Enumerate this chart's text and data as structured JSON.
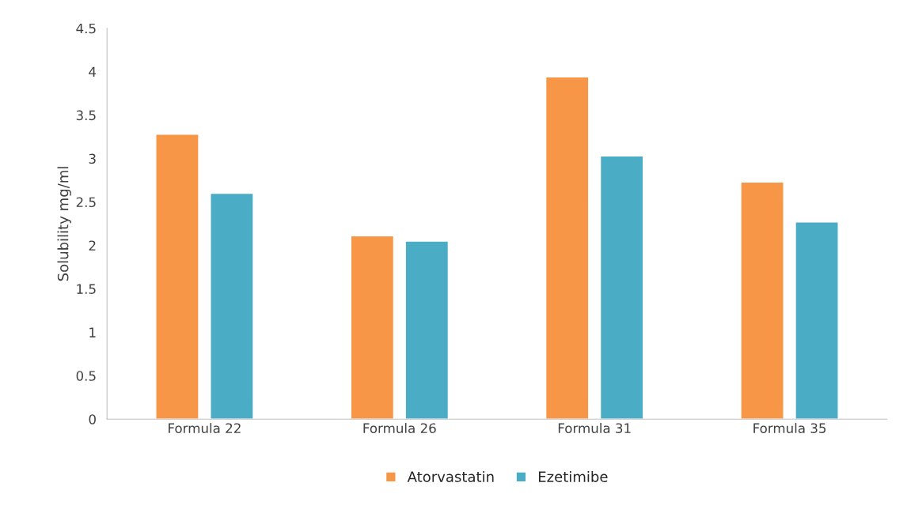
{
  "chart_data": {
    "type": "bar",
    "ylabel": "Solubility mg/ml",
    "categories": [
      "Formula 22",
      "Formula 26",
      "Formula 31",
      "Formula 35"
    ],
    "series": [
      {
        "name": "Atorvastatin",
        "color": "#f79646",
        "values": [
          3.28,
          2.11,
          3.94,
          2.73
        ]
      },
      {
        "name": "Ezetimibe",
        "color": "#4bacc6",
        "values": [
          2.6,
          2.05,
          3.03,
          2.27
        ]
      }
    ],
    "ylim": [
      0,
      4.5
    ],
    "yticks": [
      0,
      0.5,
      1,
      1.5,
      2,
      2.5,
      3,
      3.5,
      4,
      4.5
    ],
    "grid": false,
    "legend": "bottom"
  }
}
